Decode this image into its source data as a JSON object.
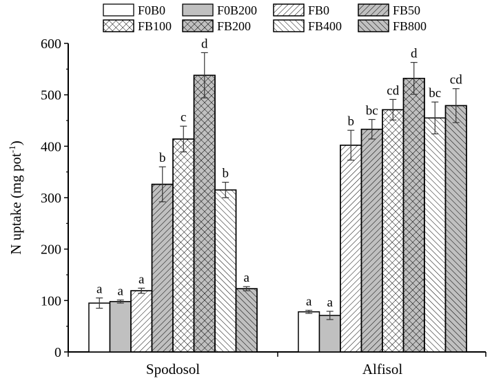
{
  "chart_data": {
    "type": "bar",
    "xlabel": "",
    "ylabel": "N uptake (mg pot",
    "ylabel_sup": "-1",
    "ylabel_close": ")",
    "ylim": [
      0,
      600
    ],
    "yticks": [
      "0",
      "100",
      "200",
      "300",
      "400",
      "500",
      "600"
    ],
    "categories": [
      "Spodosol",
      "Alfisol"
    ],
    "legend_position": "top",
    "grid": false,
    "series": [
      {
        "name": "F0B0",
        "fill": "#ffffff",
        "pattern": "none",
        "values": [
          95,
          78
        ],
        "errors": [
          10,
          3
        ],
        "letters": [
          "a",
          "a"
        ]
      },
      {
        "name": "F0B200",
        "fill": "#c0c0c0",
        "pattern": "none",
        "values": [
          98,
          71
        ],
        "errors": [
          3,
          8
        ],
        "letters": [
          "a",
          "a"
        ]
      },
      {
        "name": "FB0",
        "fill": "#ffffff",
        "pattern": "forward",
        "values": [
          119,
          402
        ],
        "errors": [
          5,
          29
        ],
        "letters": [
          "a",
          "b"
        ]
      },
      {
        "name": "FB50",
        "fill": "#c0c0c0",
        "pattern": "forward",
        "values": [
          326,
          433
        ],
        "errors": [
          34,
          19
        ],
        "letters": [
          "b",
          "bc"
        ]
      },
      {
        "name": "FB100",
        "fill": "#ffffff",
        "pattern": "cross",
        "values": [
          414,
          471
        ],
        "errors": [
          25,
          20
        ],
        "letters": [
          "c",
          "cd"
        ]
      },
      {
        "name": "FB200",
        "fill": "#c0c0c0",
        "pattern": "cross",
        "values": [
          538,
          532
        ],
        "errors": [
          44,
          31
        ],
        "letters": [
          "d",
          "d"
        ]
      },
      {
        "name": "FB400",
        "fill": "#ffffff",
        "pattern": "back",
        "values": [
          315,
          455
        ],
        "errors": [
          15,
          31
        ],
        "letters": [
          "b",
          "bc"
        ]
      },
      {
        "name": "FB800",
        "fill": "#c0c0c0",
        "pattern": "back",
        "values": [
          123,
          479
        ],
        "errors": [
          4,
          33
        ],
        "letters": [
          "a",
          "cd"
        ]
      }
    ]
  }
}
